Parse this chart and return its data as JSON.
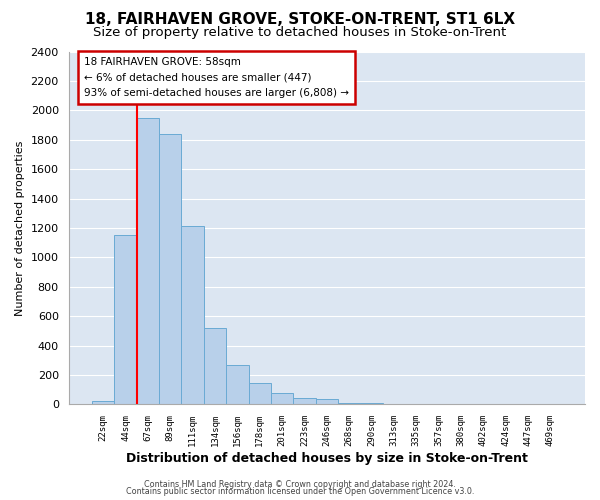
{
  "title": "18, FAIRHAVEN GROVE, STOKE-ON-TRENT, ST1 6LX",
  "subtitle": "Size of property relative to detached houses in Stoke-on-Trent",
  "xlabel": "Distribution of detached houses by size in Stoke-on-Trent",
  "ylabel": "Number of detached properties",
  "bin_labels": [
    "22sqm",
    "44sqm",
    "67sqm",
    "89sqm",
    "111sqm",
    "134sqm",
    "156sqm",
    "178sqm",
    "201sqm",
    "223sqm",
    "246sqm",
    "268sqm",
    "290sqm",
    "313sqm",
    "335sqm",
    "357sqm",
    "380sqm",
    "402sqm",
    "424sqm",
    "447sqm",
    "469sqm"
  ],
  "bar_heights": [
    25,
    1155,
    1950,
    1840,
    1215,
    520,
    265,
    148,
    78,
    45,
    35,
    12,
    8,
    5,
    3,
    2,
    2,
    1,
    1,
    1,
    0
  ],
  "bar_color": "#b8d0ea",
  "bar_edge_color": "#6aaad4",
  "annotation_line1": "18 FAIRHAVEN GROVE: 58sqm",
  "annotation_line2": "← 6% of detached houses are smaller (447)",
  "annotation_line3": "93% of semi-detached houses are larger (6,808) →",
  "ylim": [
    0,
    2400
  ],
  "yticks": [
    0,
    200,
    400,
    600,
    800,
    1000,
    1200,
    1400,
    1600,
    1800,
    2000,
    2200,
    2400
  ],
  "footnote1": "Contains HM Land Registry data © Crown copyright and database right 2024.",
  "footnote2": "Contains public sector information licensed under the Open Government Licence v3.0.",
  "fig_background_color": "#ffffff",
  "plot_bg_color": "#dce6f2",
  "grid_color": "#ffffff",
  "title_fontsize": 11,
  "subtitle_fontsize": 9.5,
  "red_line_x": 1.5
}
